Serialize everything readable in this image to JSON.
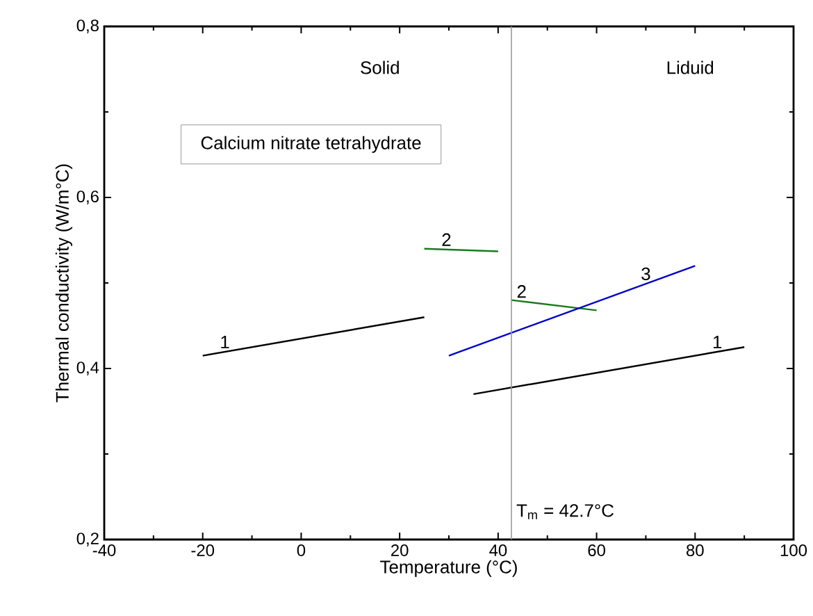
{
  "chart_data": {
    "type": "line",
    "xlabel": "Temperature (°C)",
    "ylabel": "Thermal conductivity (W/m°C)",
    "xlim": [
      -40,
      100
    ],
    "xticks": [
      -40,
      -20,
      0,
      20,
      40,
      60,
      80,
      100
    ],
    "ylim": [
      0.2,
      0.8
    ],
    "yticks": [
      {
        "value": 0.2,
        "label": "0,2"
      },
      {
        "value": 0.4,
        "label": "0,4"
      },
      {
        "value": 0.6,
        "label": "0,6"
      },
      {
        "value": 0.8,
        "label": "0,8"
      }
    ],
    "series": [
      {
        "name": "1",
        "color": "#000000",
        "x": [
          -20,
          25
        ],
        "values": [
          0.415,
          0.46
        ]
      },
      {
        "name": "2",
        "color": "#1a7a1a",
        "x": [
          25,
          40
        ],
        "values": [
          0.54,
          0.537
        ]
      },
      {
        "name": "2",
        "color": "#1a7a1a",
        "x": [
          42.7,
          60
        ],
        "values": [
          0.48,
          0.468
        ]
      },
      {
        "name": "3",
        "color": "#0000cc",
        "x": [
          30,
          80
        ],
        "values": [
          0.415,
          0.52
        ]
      },
      {
        "name": "1",
        "color": "#000000",
        "x": [
          35,
          90
        ],
        "values": [
          0.37,
          0.425
        ]
      }
    ],
    "ref_lines": [
      {
        "axis": "x",
        "value": 42.7,
        "label": "T$_{m}$ = 42.7°C",
        "color": "#999999"
      }
    ],
    "annotations": [
      "Solid",
      "Liduid",
      "Calcium nitrate tetrahydrate"
    ],
    "grid": false,
    "marker": "none",
    "line_style": "solid"
  }
}
